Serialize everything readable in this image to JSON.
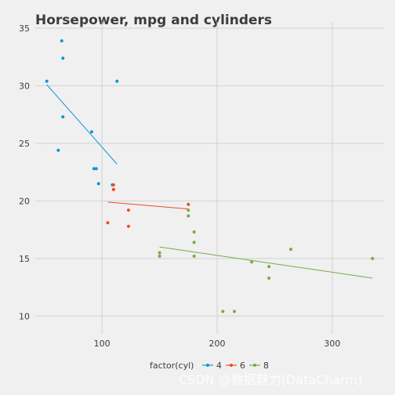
{
  "chart_data": {
    "type": "scatter",
    "title": "Horsepower, mpg and cylinders",
    "xlabel": "",
    "ylabel": "",
    "xlim": [
      42,
      345
    ],
    "ylim": [
      9,
      35
    ],
    "x_ticks": [
      100,
      200,
      300
    ],
    "y_ticks": [
      10,
      15,
      20,
      25,
      30,
      35
    ],
    "grid": true,
    "legend": {
      "title": "factor(cyl)",
      "position": "bottom",
      "entries": [
        "4",
        "6",
        "8"
      ]
    },
    "series": [
      {
        "name": "4",
        "color": "#0E95D6",
        "points": [
          [
            93,
            22.8
          ],
          [
            62,
            24.4
          ],
          [
            95,
            22.8
          ],
          [
            66,
            32.4
          ],
          [
            52,
            30.4
          ],
          [
            65,
            33.9
          ],
          [
            97,
            21.5
          ],
          [
            66,
            27.3
          ],
          [
            91,
            26.0
          ],
          [
            113,
            30.4
          ],
          [
            109,
            21.4
          ]
        ],
        "fit": [
          [
            52,
            30.1
          ],
          [
            113,
            23.2
          ]
        ]
      },
      {
        "name": "6",
        "color": "#F04C24",
        "points": [
          [
            110,
            21.0
          ],
          [
            110,
            21.0
          ],
          [
            110,
            21.4
          ],
          [
            105,
            18.1
          ],
          [
            123,
            19.2
          ],
          [
            123,
            17.8
          ],
          [
            175,
            19.7
          ]
        ],
        "fit": [
          [
            105,
            19.9
          ],
          [
            175,
            19.3
          ]
        ]
      },
      {
        "name": "8",
        "color": "#77AB43",
        "points": [
          [
            175,
            18.7
          ],
          [
            245,
            14.3
          ],
          [
            180,
            16.4
          ],
          [
            180,
            17.3
          ],
          [
            180,
            15.2
          ],
          [
            205,
            10.4
          ],
          [
            215,
            10.4
          ],
          [
            230,
            14.7
          ],
          [
            150,
            15.5
          ],
          [
            150,
            15.2
          ],
          [
            245,
            13.3
          ],
          [
            175,
            19.2
          ],
          [
            264,
            15.8
          ],
          [
            335,
            15.0
          ]
        ],
        "fit": [
          [
            150,
            16.0
          ],
          [
            335,
            13.3
          ]
        ]
      }
    ]
  },
  "watermark": "CSDN @数据魅力(DataCharm)"
}
